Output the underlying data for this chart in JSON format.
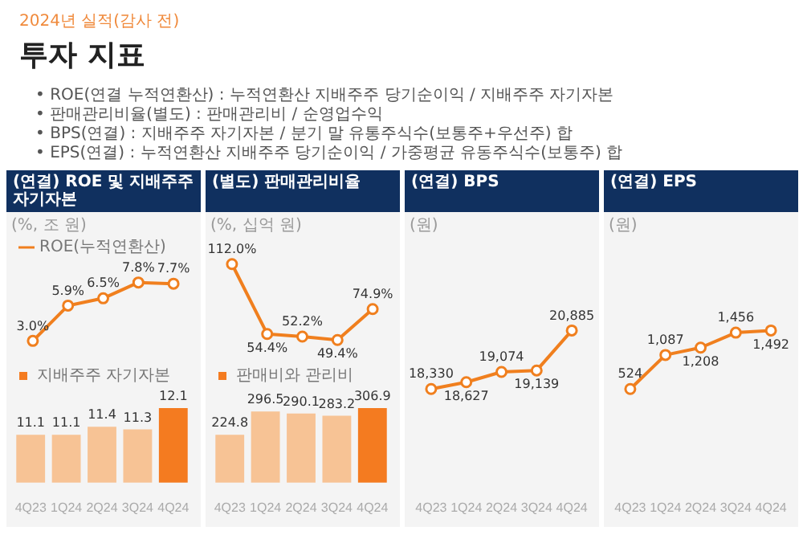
{
  "chart_data": [
    {
      "type": "other",
      "title": "투자 지표",
      "subtitle": "2024년 실적(감사 전)",
      "annotations": [
        "• ROE(연결 누적연환산) : 누적연환산 지배주주 당기순이익 / 지배주주 자기자본",
        "• 판매관리비율(별도) : 판매관리비 / 순영업수익",
        "• BPS(연결) : 지배주주 자기자본 / 분기 말 유통주식수(보통주+우선주) 합",
        "• EPS(연결) : 누적연환산 지배주주 당기순이익 / 가중평균 유동주식수(보통주) 합"
      ]
    },
    {
      "type": "line",
      "title": "(연결) ROE 및 지배주주 자기자본",
      "annotations": [
        "(%, 조 원)"
      ],
      "categories": [
        null,
        null,
        null,
        null,
        null
      ],
      "series": [
        {
          "name": "ROE(누적연환산)",
          "color": "#f07f1e",
          "values": [
            3.0,
            5.9,
            6.5,
            7.8,
            7.7
          ],
          "value_labels": [
            "3.0%",
            "5.9%",
            "6.5%",
            "7.8%",
            "7.7%"
          ]
        }
      ],
      "legend": "top left",
      "tick_labels": false,
      "marker": "circle"
    },
    {
      "type": "bar",
      "categories": [
        "4Q23",
        "1Q24",
        "2Q24",
        "3Q24",
        "4Q24"
      ],
      "series": [
        {
          "name": "지배주주 자기자본",
          "color": "#f47b20",
          "colors": [
            "#f7c395",
            "#f7c395",
            "#f7c395",
            "#f7c395",
            "#f47b20"
          ],
          "values": [
            11.1,
            11.1,
            11.4,
            11.3,
            12.1
          ],
          "value_labels": [
            "11.1",
            "11.1",
            "11.4",
            "11.3",
            "12.1"
          ]
        }
      ],
      "legend": "top left",
      "tick_labels": "x"
    },
    {
      "type": "line",
      "title": "(별도) 판매관리비율",
      "annotations": [
        "(%, 십억 원)"
      ],
      "categories": [
        null,
        null,
        null,
        null,
        null
      ],
      "series": [
        {
          "color": "#f07f1e",
          "values": [
            112.0,
            54.4,
            52.2,
            49.4,
            74.9
          ],
          "value_labels": [
            "112.0%",
            "54.4%",
            "52.2%",
            "49.4%",
            "74.9%"
          ]
        }
      ],
      "tick_labels": false,
      "marker": "circle"
    },
    {
      "type": "bar",
      "categories": [
        "4Q23",
        "1Q24",
        "2Q24",
        "3Q24",
        "4Q24"
      ],
      "series": [
        {
          "name": "판매비와 관리비",
          "color": "#f47b20",
          "colors": [
            "#f7c395",
            "#f7c395",
            "#f7c395",
            "#f7c395",
            "#f47b20"
          ],
          "values": [
            224.8,
            296.5,
            290.1,
            283.2,
            306.9
          ],
          "value_labels": [
            "224.8",
            "296.5",
            "290.1",
            "283.2",
            "306.9"
          ]
        }
      ],
      "legend": "top left",
      "tick_labels": "x"
    },
    {
      "type": "line",
      "title": "(연결) BPS",
      "annotations": [
        "(원)"
      ],
      "categories": [
        "4Q23",
        "1Q24",
        "2Q24",
        "3Q24",
        "4Q24"
      ],
      "series": [
        {
          "color": "#f07f1e",
          "values": [
            18330,
            18627,
            19074,
            19139,
            20885
          ],
          "value_labels": [
            "18,330",
            "18,627",
            "19,074",
            "19,139",
            "20,885"
          ]
        }
      ],
      "tick_labels": "x",
      "marker": "circle"
    },
    {
      "type": "line",
      "title": "(연결) EPS",
      "annotations": [
        "(원)"
      ],
      "categories": [
        "4Q23",
        "1Q24",
        "2Q24",
        "3Q24",
        "4Q24"
      ],
      "series": [
        {
          "color": "#f07f1e",
          "values": [
            524,
            1087,
            1208,
            1456,
            1492
          ],
          "value_labels": [
            "524",
            "1,087",
            "1,208",
            "1,456",
            "1,492"
          ]
        }
      ],
      "tick_labels": "x",
      "marker": "circle"
    }
  ]
}
